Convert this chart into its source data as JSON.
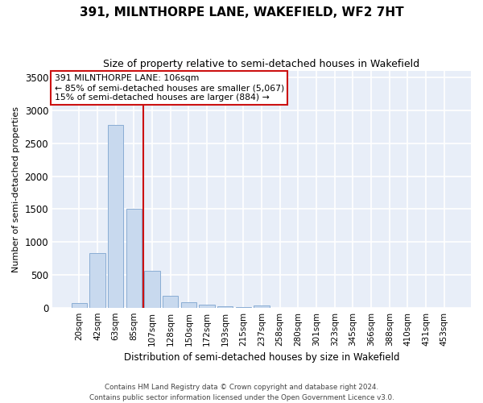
{
  "title1": "391, MILNTHORPE LANE, WAKEFIELD, WF2 7HT",
  "title2": "Size of property relative to semi-detached houses in Wakefield",
  "xlabel": "Distribution of semi-detached houses by size in Wakefield",
  "ylabel": "Number of semi-detached properties",
  "footer1": "Contains HM Land Registry data © Crown copyright and database right 2024.",
  "footer2": "Contains public sector information licensed under the Open Government Licence v3.0.",
  "ann1": "391 MILNTHORPE LANE: 106sqm",
  "ann2": "← 85% of semi-detached houses are smaller (5,067)",
  "ann3": "15% of semi-detached houses are larger (884) →",
  "bar_color": "#c8d9ee",
  "bar_edge_color": "#8aadd4",
  "red_color": "#cc1111",
  "bg_color": "#e8eef8",
  "grid_color": "#ffffff",
  "categories": [
    "20sqm",
    "42sqm",
    "63sqm",
    "85sqm",
    "107sqm",
    "128sqm",
    "150sqm",
    "172sqm",
    "193sqm",
    "215sqm",
    "237sqm",
    "258sqm",
    "280sqm",
    "301sqm",
    "323sqm",
    "345sqm",
    "366sqm",
    "388sqm",
    "410sqm",
    "431sqm",
    "453sqm"
  ],
  "values": [
    75,
    830,
    2780,
    1510,
    560,
    175,
    80,
    45,
    20,
    5,
    30,
    0,
    0,
    0,
    0,
    0,
    0,
    0,
    0,
    0,
    0
  ],
  "ylim": [
    0,
    3600
  ],
  "yticks": [
    0,
    500,
    1000,
    1500,
    2000,
    2500,
    3000,
    3500
  ],
  "red_line_x": 3.5
}
